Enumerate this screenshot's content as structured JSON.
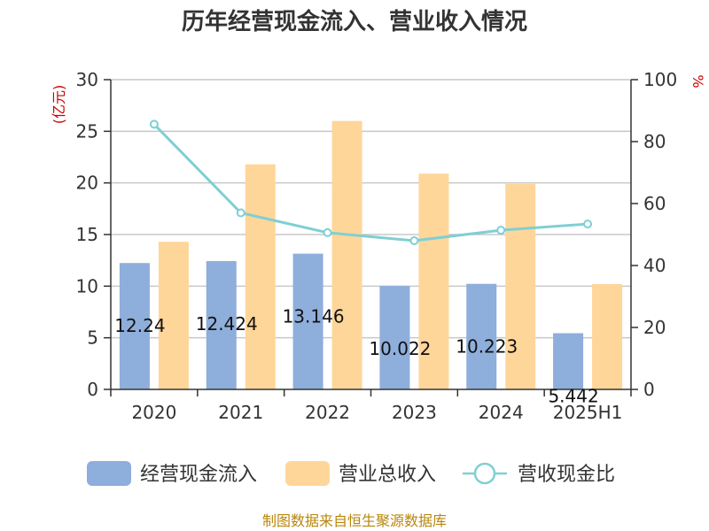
{
  "title": "历年经营现金流入、营业收入情况",
  "source": "制图数据来自恒生聚源数据库",
  "chart_data": {
    "type": "bar",
    "title": "历年经营现金流入、营业收入情况",
    "categories": [
      "2020",
      "2021",
      "2022",
      "2023",
      "2024",
      "2025H1"
    ],
    "y_left": {
      "unit": "(亿元)",
      "range": [
        0,
        30
      ],
      "ticks": [
        0,
        5,
        10,
        15,
        20,
        25,
        30
      ]
    },
    "y_right": {
      "unit": "%",
      "range": [
        0,
        100
      ],
      "ticks": [
        0,
        20,
        40,
        60,
        80,
        100
      ]
    },
    "series": [
      {
        "name": "经营现金流入",
        "type": "bar",
        "axis": "left",
        "color": "#8eaedb",
        "values": [
          12.24,
          12.424,
          13.146,
          10.022,
          10.223,
          5.442
        ],
        "labels": [
          "12.24",
          "12.424",
          "13.146",
          "10.022",
          "10.223",
          "5.442"
        ]
      },
      {
        "name": "营业总收入",
        "type": "bar",
        "axis": "left",
        "color": "#ffd699",
        "values": [
          14.3,
          21.8,
          26.0,
          20.9,
          19.9,
          10.2
        ]
      },
      {
        "name": "营收现金比",
        "type": "line",
        "axis": "right",
        "color": "#7fcfd3",
        "values": [
          85.6,
          57.0,
          50.6,
          48.0,
          51.4,
          53.4
        ]
      }
    ],
    "grid": true,
    "legend_position": "bottom"
  }
}
